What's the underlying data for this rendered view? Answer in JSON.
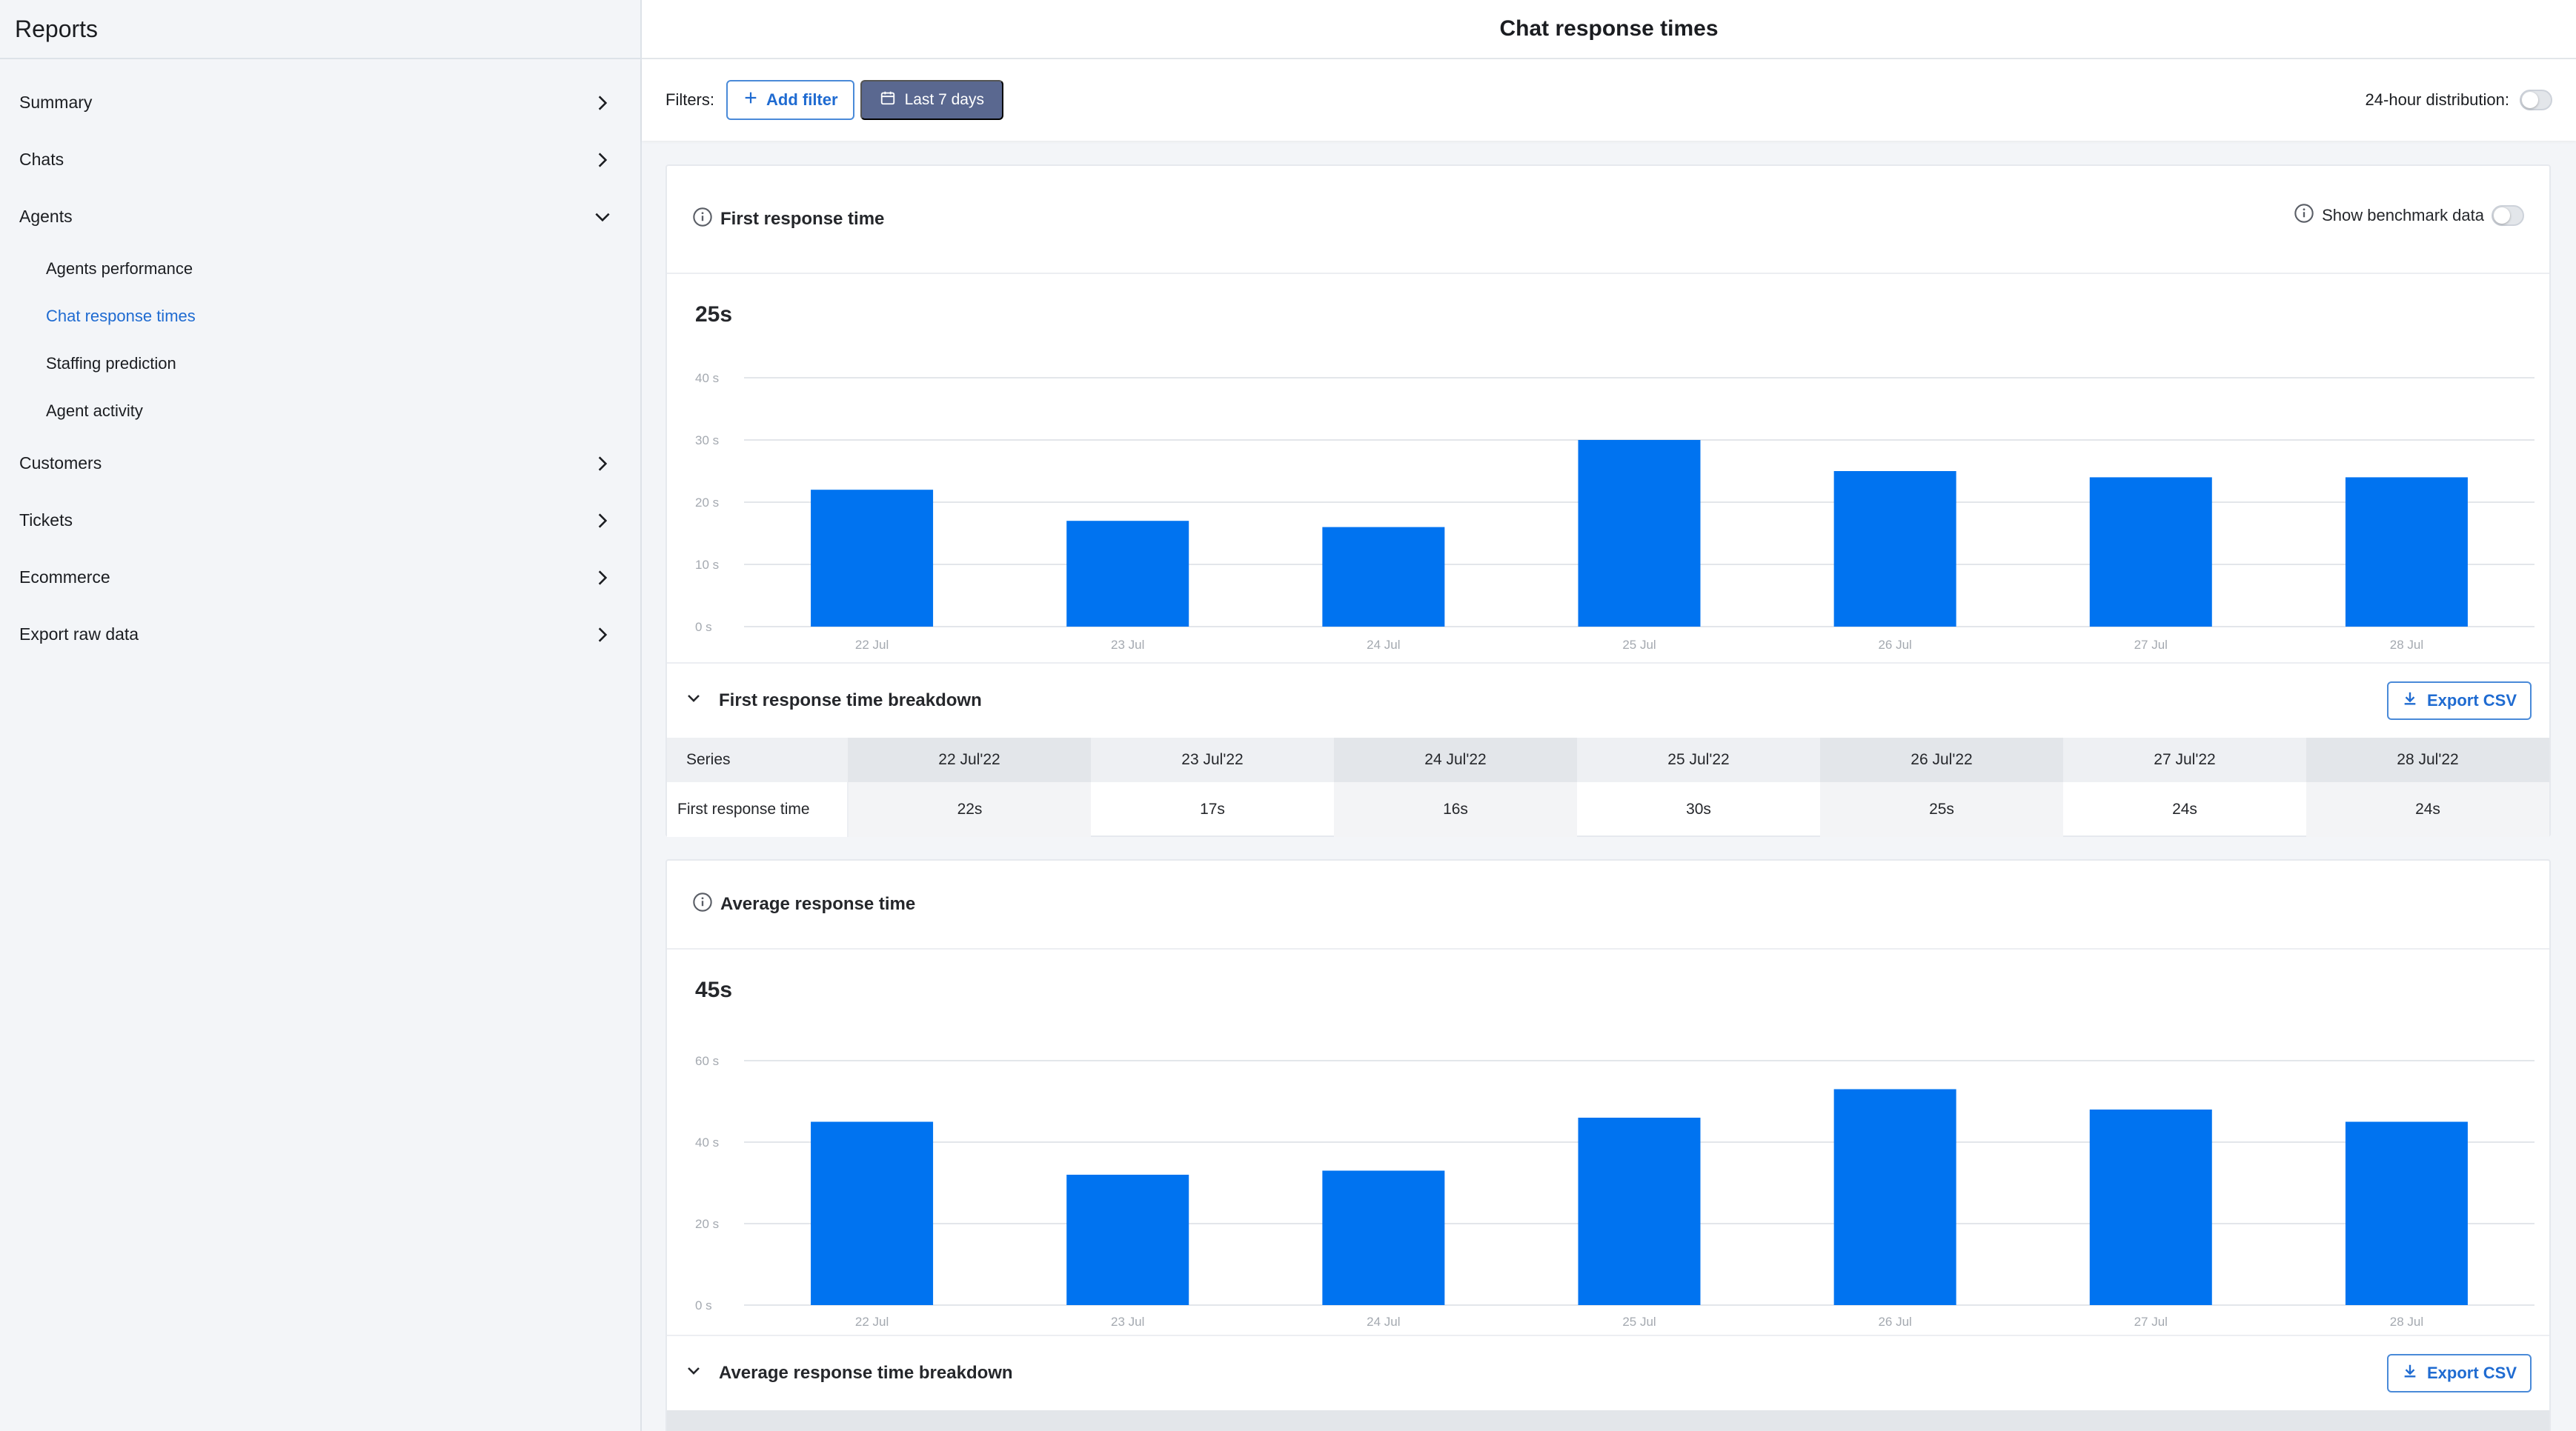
{
  "sidebar": {
    "title": "Reports",
    "items": [
      {
        "label": "Summary"
      },
      {
        "label": "Chats"
      },
      {
        "label": "Agents"
      },
      {
        "label": "Customers"
      },
      {
        "label": "Tickets"
      },
      {
        "label": "Ecommerce"
      },
      {
        "label": "Export raw data"
      }
    ],
    "agents_sub": [
      {
        "label": "Agents performance"
      },
      {
        "label": "Chat response times"
      },
      {
        "label": "Staffing prediction"
      },
      {
        "label": "Agent activity"
      }
    ]
  },
  "header": {
    "title": "Chat response times"
  },
  "filters": {
    "label": "Filters:",
    "add_filter": "Add filter",
    "date_range": "Last 7 days",
    "distribution_label": "24-hour distribution:"
  },
  "colors": {
    "accent": "#1f6bd1",
    "bar": "#0073f0",
    "date_button": "#5a6890"
  },
  "first_card": {
    "title": "First response time",
    "benchmark_label": "Show benchmark data",
    "big_value": "25s",
    "breakdown_title": "First response time breakdown",
    "export_label": "Export CSV",
    "table": {
      "series_header": "Series",
      "dates": [
        "22 Jul'22",
        "23 Jul'22",
        "24 Jul'22",
        "25 Jul'22",
        "26 Jul'22",
        "27 Jul'22",
        "28 Jul'22"
      ],
      "row_label": "First response time",
      "values": [
        "22s",
        "17s",
        "16s",
        "30s",
        "25s",
        "24s",
        "24s"
      ]
    }
  },
  "second_card": {
    "title": "Average response time",
    "big_value": "45s",
    "breakdown_title": "Average response time breakdown",
    "export_label": "Export CSV"
  },
  "chart_data": [
    {
      "type": "bar",
      "categories": [
        "22 Jul",
        "23 Jul",
        "24 Jul",
        "25 Jul",
        "26 Jul",
        "27 Jul",
        "28 Jul"
      ],
      "values": [
        22,
        17,
        16,
        30,
        25,
        24,
        24
      ],
      "yticks": [
        "0 s",
        "10 s",
        "20 s",
        "30 s",
        "40 s"
      ],
      "ylim": [
        0,
        40
      ],
      "grid": true
    },
    {
      "type": "bar",
      "categories": [
        "22 Jul",
        "23 Jul",
        "24 Jul",
        "25 Jul",
        "26 Jul",
        "27 Jul",
        "28 Jul"
      ],
      "values": [
        45,
        32,
        33,
        46,
        53,
        48,
        45
      ],
      "yticks": [
        "0 s",
        "20 s",
        "40 s",
        "60 s"
      ],
      "ylim": [
        0,
        60
      ],
      "grid": true
    }
  ]
}
